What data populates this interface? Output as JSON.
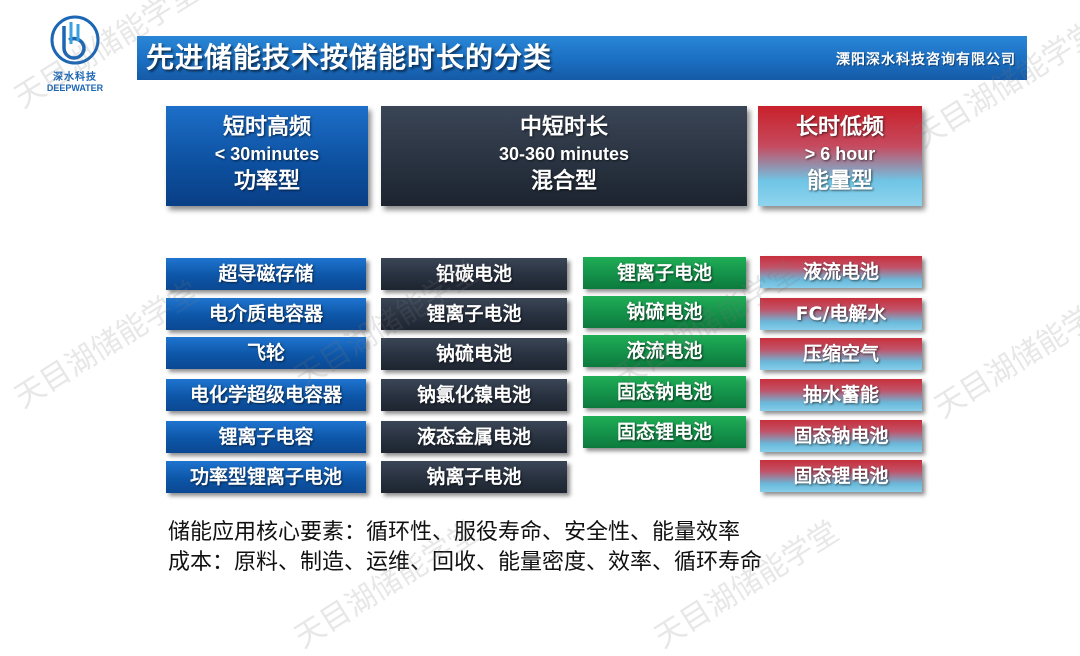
{
  "logo": {
    "name_cn": "深水科技",
    "name_en": "DEEPWATER"
  },
  "header": {
    "title": "先进储能技术按储能时长的分类",
    "company": "溧阳深水科技咨询有限公司"
  },
  "categories": [
    {
      "name": "短时高频",
      "duration": "< 30minutes",
      "type": "功率型"
    },
    {
      "name": "中短时长",
      "duration": "30-360 minutes",
      "type": "混合型"
    },
    {
      "name": "长时低频",
      "duration": "> 6 hour",
      "type": "能量型"
    }
  ],
  "columns": {
    "blue": [
      "超导磁存储",
      "电介质电容器",
      "飞轮",
      "电化学超级电容器",
      "锂离子电容",
      "功率型锂离子电池"
    ],
    "dark": [
      "铅碳电池",
      "锂离子电池",
      "钠硫电池",
      "钠氯化镍电池",
      "液态金属电池",
      "钠离子电池"
    ],
    "green": [
      "锂离子电池",
      "钠硫电池",
      "液流电池",
      "固态钠电池",
      "固态锂电池"
    ],
    "red": [
      "液流电池",
      "FC/电解水",
      "压缩空气",
      "抽水蓄能",
      "固态钠电池",
      "固态锂电池"
    ]
  },
  "notes": {
    "line1": "储能应用核心要素：循环性、服役寿命、安全性、能量效率",
    "line2": "成本：原料、制造、运维、回收、能量密度、效率、循环寿命"
  },
  "watermark": "天目湖储能学堂",
  "colors": {
    "title_bar": "#1b6fc2",
    "blue": "#0d56a8",
    "dark": "#28313f",
    "green": "#14914a",
    "red": "#c8303c",
    "light_blue": "#86cdea"
  }
}
